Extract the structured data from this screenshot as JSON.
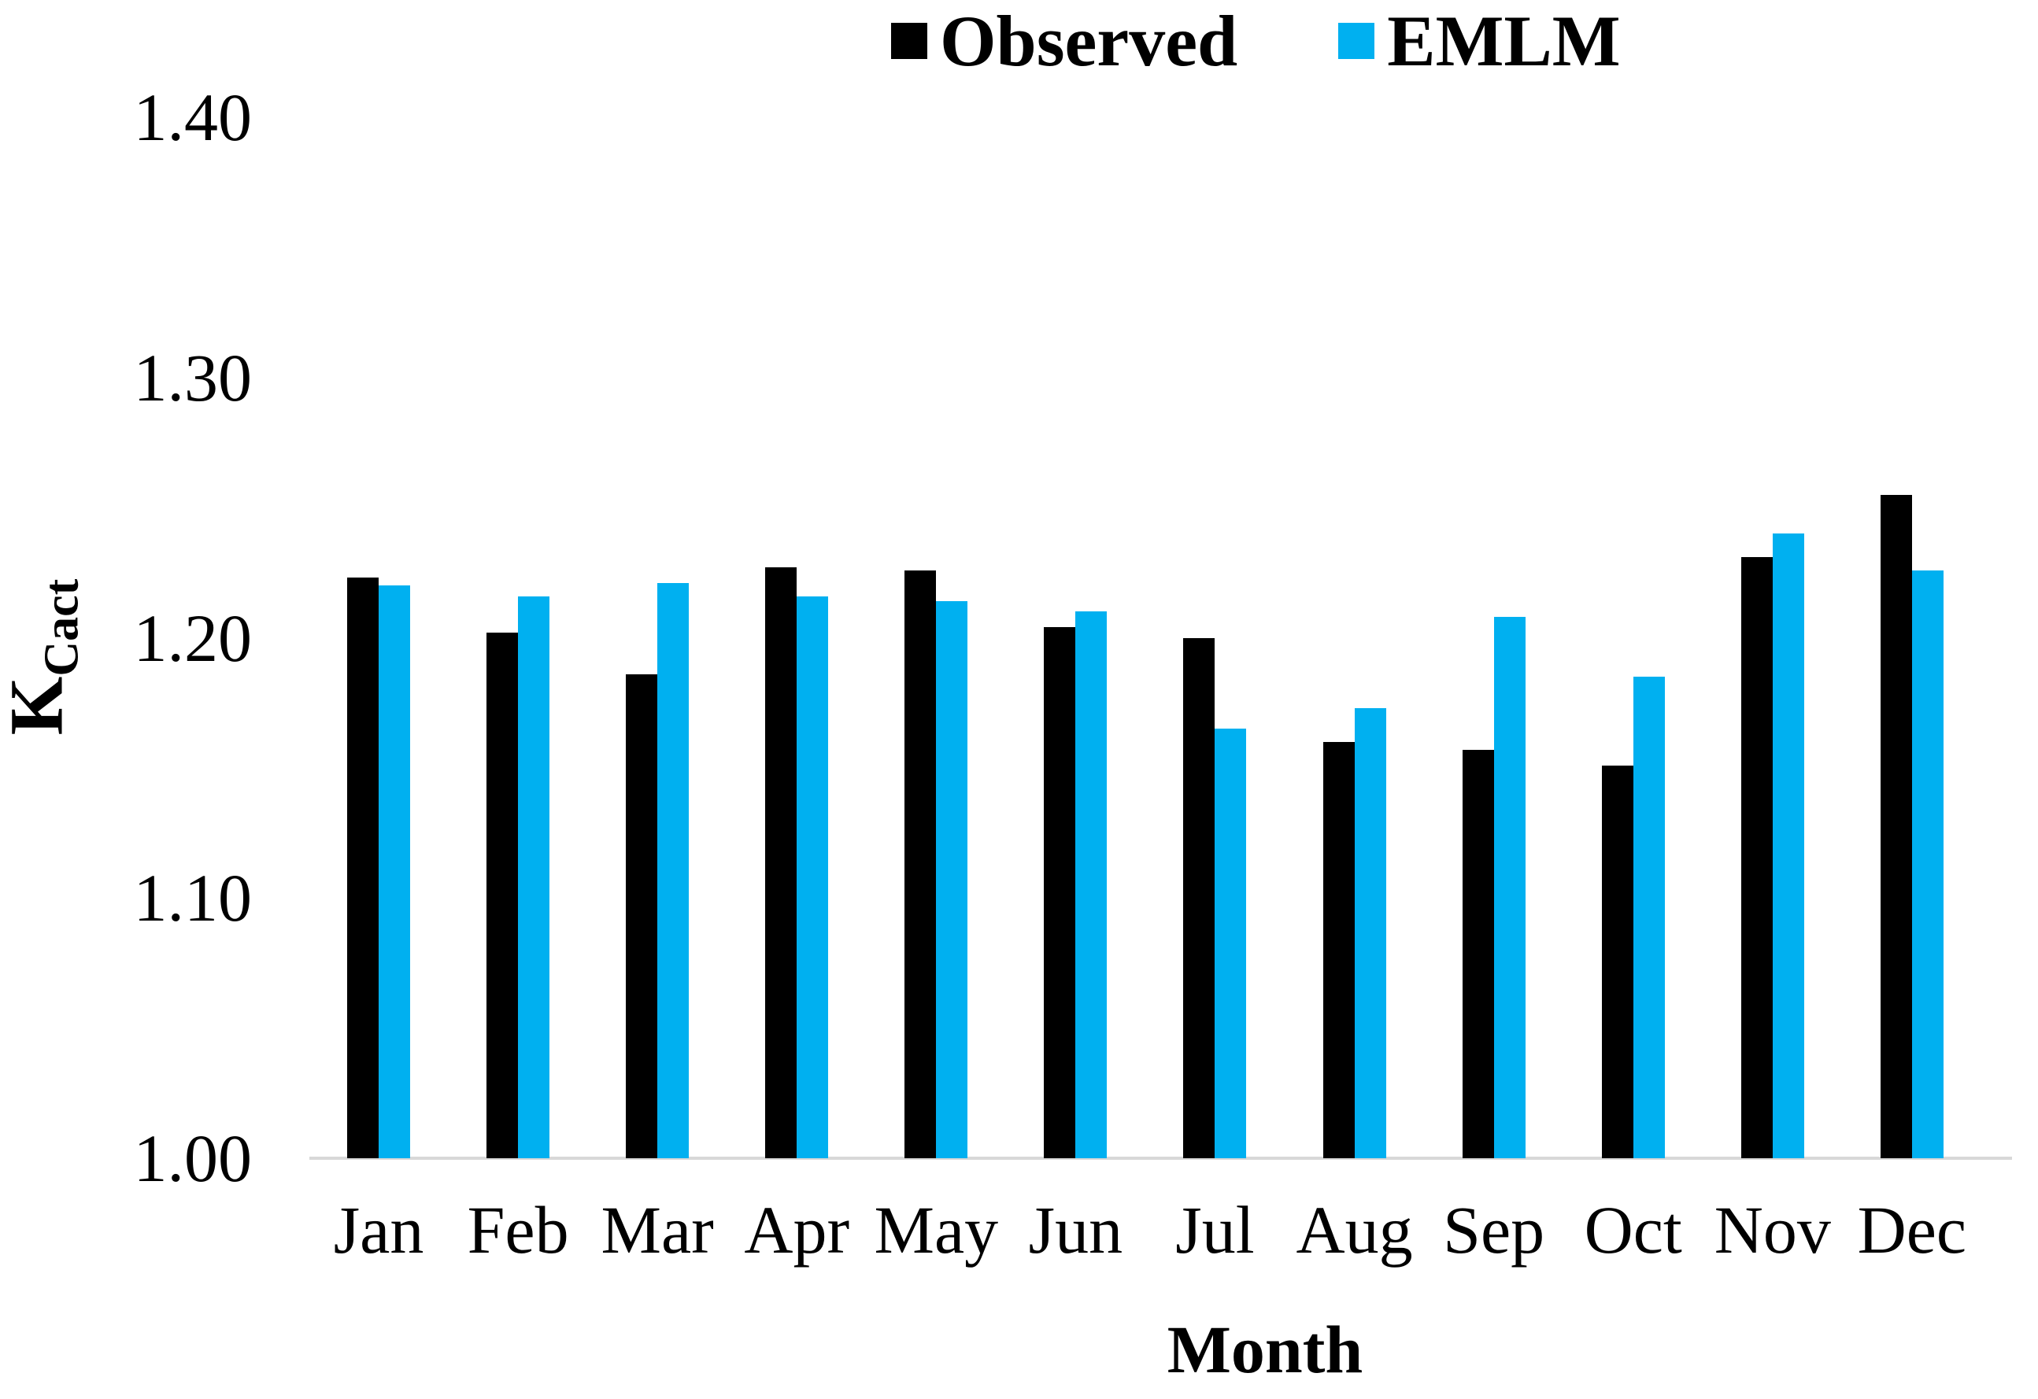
{
  "chart_data": {
    "type": "bar",
    "title": "",
    "categories": [
      "Jan",
      "Feb",
      "Mar",
      "Apr",
      "May",
      "Jun",
      "Jul",
      "Aug",
      "Sep",
      "Oct",
      "Nov",
      "Dec"
    ],
    "series": [
      {
        "name": "Observed",
        "color": "#000000",
        "values": [
          1.223,
          1.202,
          1.186,
          1.227,
          1.226,
          1.204,
          1.2,
          1.16,
          1.157,
          1.151,
          1.231,
          1.255
        ]
      },
      {
        "name": "EMLM",
        "color": "#00B0F0",
        "values": [
          1.22,
          1.216,
          1.221,
          1.216,
          1.214,
          1.21,
          1.165,
          1.173,
          1.208,
          1.185,
          1.24,
          1.226
        ]
      }
    ],
    "xlabel": "Month",
    "ylabel_base": "K",
    "ylabel_subscript": "Cact",
    "ylim": [
      1.0,
      1.4
    ],
    "yticks": [
      1.0,
      1.1,
      1.2,
      1.3,
      1.4
    ],
    "ytick_labels": [
      "1.00",
      "1.10",
      "1.20",
      "1.30",
      "1.40"
    ],
    "grid": false,
    "legend_position": "top-center",
    "axis_line_color": "#d8d8d8",
    "background_color": "#ffffff"
  },
  "legend": {
    "items": [
      {
        "label": "Observed",
        "color": "#000000"
      },
      {
        "label": "EMLM",
        "color": "#00B0F0"
      }
    ]
  }
}
